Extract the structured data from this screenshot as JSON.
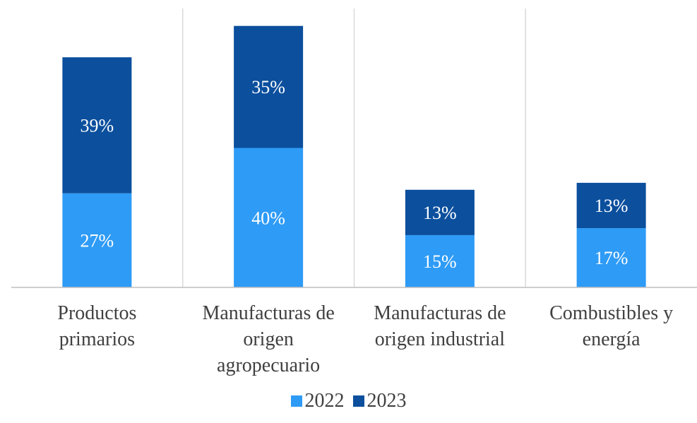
{
  "chart_data": {
    "type": "bar",
    "stacked": true,
    "categories": [
      [
        "Productos",
        "primarios"
      ],
      [
        "Manufacturas de",
        "origen",
        "agropecuario"
      ],
      [
        "Manufacturas de",
        "origen industrial"
      ],
      [
        "Combustibles y",
        "energía"
      ]
    ],
    "series": [
      {
        "name": "2022",
        "color": "#2e9bf6",
        "values": [
          27,
          40,
          15,
          17
        ],
        "labels": [
          "27%",
          "40%",
          "15%",
          "17%"
        ]
      },
      {
        "name": "2023",
        "color": "#0b4f9d",
        "values": [
          39,
          35,
          13,
          13
        ],
        "labels": [
          "39%",
          "35%",
          "13%",
          "13%"
        ]
      }
    ],
    "ylim": [
      0,
      80
    ],
    "grid": false,
    "separators": true,
    "legend_position": "bottom",
    "label_color": "#ffffff",
    "axis_color": "#bfbfbf",
    "text_color": "#404040"
  }
}
